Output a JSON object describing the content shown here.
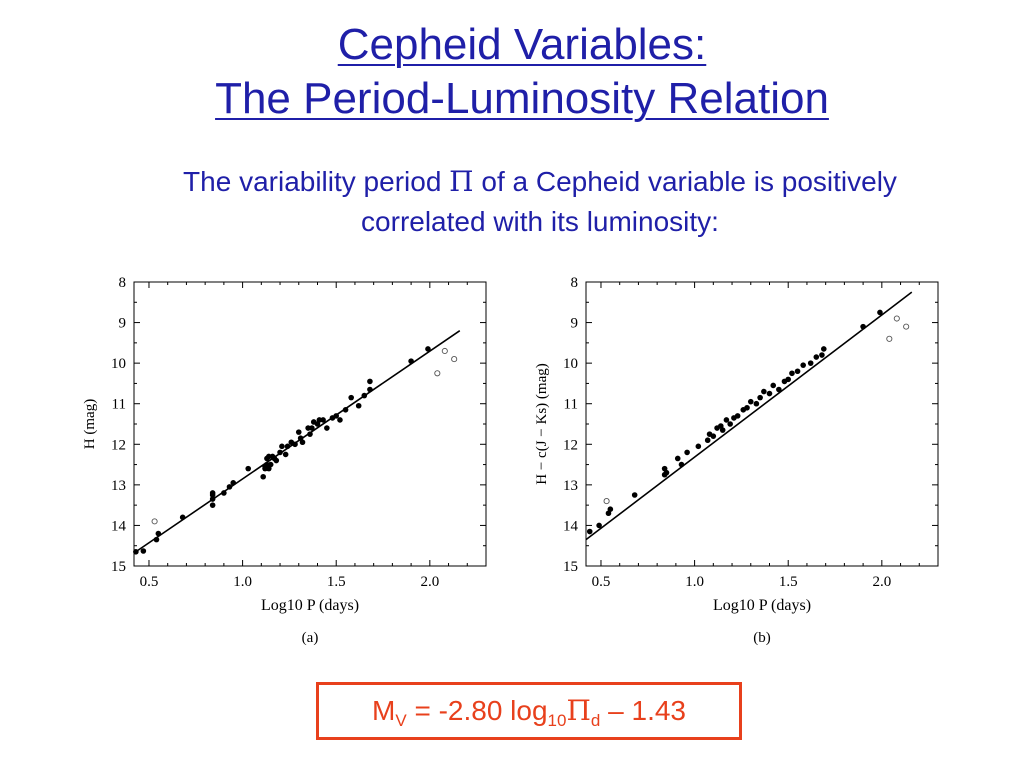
{
  "slide": {
    "title_line1": "Cepheid Variables:",
    "title_line2": "The Period-Luminosity Relation",
    "subtitle_before": "The variability period ",
    "subtitle_symbol": "Π",
    "subtitle_after": " of a Cepheid variable is positively correlated with its luminosity:",
    "title_color": "#1f1fa8",
    "formula": {
      "lhs": "M",
      "lhs_sub": "V",
      "mid": " = -2.80 log",
      "log_sub": "10",
      "symbol": "Π",
      "symbol_sub": "d",
      "rhs": " – 1.43",
      "color": "#e8401c"
    }
  },
  "chart_data": [
    {
      "type": "scatter",
      "panel_label": "(a)",
      "xlabel": "Log10 P (days)",
      "ylabel": "H (mag)",
      "xlim": [
        0.42,
        2.3
      ],
      "ylim": [
        15,
        8
      ],
      "x_ticks": [
        0.5,
        1.0,
        1.5,
        2.0
      ],
      "x_tick_labels": [
        "0.5",
        "1.0",
        "1.5",
        "2.0"
      ],
      "y_ticks": [
        8,
        9,
        10,
        11,
        12,
        13,
        14,
        15
      ],
      "y_tick_labels": [
        "8",
        "9",
        "10",
        "11",
        "12",
        "13",
        "14",
        "15"
      ],
      "grid": false,
      "fit_line": {
        "x": [
          0.42,
          2.16
        ],
        "y": [
          14.68,
          9.2
        ]
      },
      "series": [
        {
          "marker": "filled",
          "x": [
            0.43,
            0.47,
            0.54,
            0.55,
            0.68,
            0.84,
            0.84,
            0.84,
            0.84,
            0.9,
            0.93,
            0.95,
            1.03,
            1.11,
            1.12,
            1.12,
            1.13,
            1.13,
            1.14,
            1.14,
            1.15,
            1.16,
            1.17,
            1.18,
            1.2,
            1.21,
            1.23,
            1.24,
            1.26,
            1.28,
            1.3,
            1.31,
            1.32,
            1.35,
            1.36,
            1.37,
            1.38,
            1.4,
            1.41,
            1.43,
            1.45,
            1.48,
            1.5,
            1.52,
            1.55,
            1.58,
            1.62,
            1.65,
            1.68,
            1.68,
            1.9,
            1.99
          ],
          "y": [
            14.65,
            14.63,
            14.35,
            14.2,
            13.8,
            13.5,
            13.35,
            13.25,
            13.2,
            13.2,
            13.05,
            12.95,
            12.6,
            12.8,
            12.55,
            12.6,
            12.35,
            12.5,
            12.3,
            12.6,
            12.5,
            12.3,
            12.35,
            12.4,
            12.2,
            12.05,
            12.25,
            12.05,
            11.95,
            12.0,
            11.7,
            11.85,
            11.95,
            11.6,
            11.75,
            11.6,
            11.45,
            11.5,
            11.4,
            11.4,
            11.6,
            11.35,
            11.3,
            11.4,
            11.15,
            10.85,
            11.05,
            10.8,
            10.65,
            10.45,
            9.95,
            9.65
          ]
        },
        {
          "marker": "open",
          "x": [
            0.53,
            2.04,
            2.08,
            2.13
          ],
          "y": [
            13.9,
            10.25,
            9.7,
            9.9
          ]
        }
      ]
    },
    {
      "type": "scatter",
      "panel_label": "(b)",
      "xlabel": "Log10 P (days)",
      "ylabel": "H − c(J − Ks) (mag)",
      "xlim": [
        0.42,
        2.3
      ],
      "ylim": [
        15,
        8
      ],
      "x_ticks": [
        0.5,
        1.0,
        1.5,
        2.0
      ],
      "x_tick_labels": [
        "0.5",
        "1.0",
        "1.5",
        "2.0"
      ],
      "y_ticks": [
        8,
        9,
        10,
        11,
        12,
        13,
        14,
        15
      ],
      "y_tick_labels": [
        "8",
        "9",
        "10",
        "11",
        "12",
        "13",
        "14",
        "15"
      ],
      "grid": false,
      "fit_line": {
        "x": [
          0.42,
          2.16
        ],
        "y": [
          14.35,
          8.25
        ]
      },
      "series": [
        {
          "marker": "filled",
          "x": [
            0.44,
            0.49,
            0.54,
            0.55,
            0.68,
            0.84,
            0.84,
            0.85,
            0.91,
            0.93,
            0.96,
            1.02,
            1.07,
            1.08,
            1.1,
            1.12,
            1.14,
            1.15,
            1.17,
            1.19,
            1.21,
            1.23,
            1.26,
            1.28,
            1.3,
            1.33,
            1.35,
            1.37,
            1.4,
            1.42,
            1.45,
            1.48,
            1.5,
            1.52,
            1.55,
            1.58,
            1.62,
            1.65,
            1.68,
            1.69,
            1.9,
            1.99
          ],
          "y": [
            14.15,
            14.0,
            13.7,
            13.6,
            13.25,
            12.75,
            12.6,
            12.7,
            12.35,
            12.5,
            12.2,
            12.05,
            11.9,
            11.75,
            11.8,
            11.6,
            11.55,
            11.65,
            11.4,
            11.5,
            11.35,
            11.3,
            11.15,
            11.1,
            10.95,
            11.0,
            10.85,
            10.7,
            10.75,
            10.55,
            10.65,
            10.45,
            10.4,
            10.25,
            10.2,
            10.05,
            10.0,
            9.85,
            9.8,
            9.65,
            9.1,
            8.75
          ]
        },
        {
          "marker": "open",
          "x": [
            0.53,
            2.04,
            2.08,
            2.13
          ],
          "y": [
            13.4,
            9.4,
            8.9,
            9.1
          ]
        }
      ]
    }
  ]
}
